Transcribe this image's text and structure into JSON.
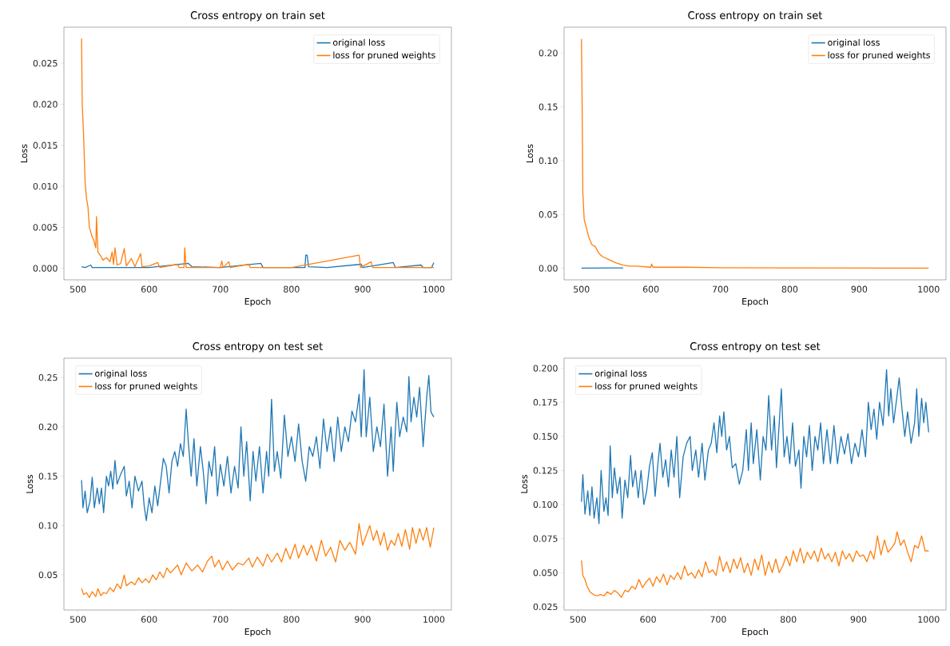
{
  "chart_data": [
    {
      "type": "line",
      "title": "Cross entropy on train set",
      "xlabel": "Epoch",
      "ylabel": "Loss",
      "legend": "top right",
      "xlim": [
        480.25,
        1024.75
      ],
      "ylim": [
        -0.0014,
        0.0294
      ],
      "xticks": [
        500,
        600,
        700,
        800,
        900,
        1000
      ],
      "yticks": [
        {
          "value": 0,
          "label": "0.000"
        },
        {
          "value": 0.005,
          "label": "0.005"
        },
        {
          "value": 0.01,
          "label": "0.010"
        },
        {
          "value": 0.015,
          "label": "0.015"
        },
        {
          "value": 0.02,
          "label": "0.020"
        },
        {
          "value": 0.025,
          "label": "0.025"
        }
      ],
      "series": [
        {
          "name": "original loss",
          "color": "#1f77b4",
          "x": [
            505,
            510,
            518,
            520,
            600,
            655,
            660,
            700,
            757,
            760,
            819,
            820,
            822,
            824,
            850,
            898,
            900,
            943,
            946,
            982,
            985,
            997,
            1000
          ],
          "values": [
            0.0002,
            0.0001,
            0.0004,
            0.0001,
            0.0001,
            0.0006,
            0.0002,
            0.0001,
            0.0006,
            0.0001,
            0.0001,
            0.0016,
            0.0016,
            0.0002,
            0.0001,
            0.0005,
            0.0001,
            0.0007,
            0.0001,
            0.0004,
            0.0001,
            0.0001,
            0.0007
          ]
        },
        {
          "name": "loss for pruned weights",
          "color": "#ff7f0e",
          "x": [
            505,
            506,
            508,
            510,
            512,
            514,
            516,
            520,
            522,
            525,
            526,
            528,
            532,
            535,
            540,
            545,
            548,
            550,
            552,
            555,
            560,
            565,
            568,
            575,
            580,
            588,
            590,
            600,
            612,
            615,
            640,
            642,
            649,
            650,
            652,
            700,
            702,
            704,
            712,
            714,
            740,
            742,
            800,
            895,
            897,
            912,
            914,
            1000
          ],
          "values": [
            0.028,
            0.02,
            0.016,
            0.0105,
            0.0085,
            0.0075,
            0.005,
            0.0038,
            0.0035,
            0.0025,
            0.0063,
            0.002,
            0.0015,
            0.001,
            0.0013,
            0.0008,
            0.002,
            0.0005,
            0.0025,
            0.0004,
            0.0006,
            0.0024,
            0.0003,
            0.0012,
            0.0002,
            0.0018,
            0.0002,
            0.0003,
            0.0007,
            0.0001,
            0.0005,
            0.0001,
            0.0001,
            0.0025,
            0.0001,
            0.0001,
            0.0009,
            0.0001,
            0.0008,
            0.0001,
            0.0005,
            0.0001,
            0.0001,
            0.0016,
            0.0001,
            0.0008,
            0.0001,
            0.0001
          ]
        }
      ]
    },
    {
      "type": "line",
      "title": "Cross entropy on train set",
      "xlabel": "Epoch",
      "ylabel": "Loss",
      "legend": "top right",
      "xlim": [
        475,
        1025
      ],
      "ylim": [
        -0.0107,
        0.224
      ],
      "xticks": [
        500,
        600,
        700,
        800,
        900,
        1000
      ],
      "yticks": [
        {
          "value": 0,
          "label": "0.00"
        },
        {
          "value": 0.05,
          "label": "0.05"
        },
        {
          "value": 0.1,
          "label": "0.10"
        },
        {
          "value": 0.15,
          "label": "0.15"
        },
        {
          "value": 0.2,
          "label": "0.20"
        }
      ],
      "series": [
        {
          "name": "original loss",
          "color": "#1f77b4",
          "x": [
            500,
            560
          ],
          "values": [
            0.0002,
            0.0003
          ]
        },
        {
          "name": "loss for pruned weights",
          "color": "#ff7f0e",
          "x": [
            500,
            501,
            502,
            504,
            507,
            510,
            515,
            520,
            525,
            530,
            540,
            550,
            560,
            570,
            580,
            600,
            601,
            603,
            650,
            700,
            800,
            1000
          ],
          "values": [
            0.213,
            0.15,
            0.07,
            0.045,
            0.038,
            0.03,
            0.022,
            0.02,
            0.014,
            0.011,
            0.008,
            0.005,
            0.003,
            0.002,
            0.002,
            0.001,
            0.004,
            0.001,
            0.001,
            0.0005,
            0.0003,
            0.0001
          ]
        }
      ]
    },
    {
      "type": "line",
      "title": "Cross entropy on test set",
      "xlabel": "Epoch",
      "ylabel": "Loss",
      "legend": "top left",
      "xlim": [
        480.25,
        1024.75
      ],
      "ylim": [
        0.0144,
        0.2696
      ],
      "xticks": [
        500,
        600,
        700,
        800,
        900,
        1000
      ],
      "yticks": [
        {
          "value": 0.05,
          "label": "0.05"
        },
        {
          "value": 0.1,
          "label": "0.10"
        },
        {
          "value": 0.15,
          "label": "0.15"
        },
        {
          "value": 0.2,
          "label": "0.20"
        },
        {
          "value": 0.25,
          "label": "0.25"
        }
      ],
      "series": [
        {
          "name": "original loss",
          "color": "#1f77b4",
          "x": [
            505,
            507,
            510,
            513,
            517,
            520,
            523,
            527,
            530,
            533,
            536,
            540,
            543,
            546,
            549,
            552,
            555,
            560,
            565,
            568,
            572,
            576,
            580,
            585,
            590,
            593,
            596,
            600,
            604,
            608,
            612,
            617,
            620,
            624,
            628,
            632,
            636,
            640,
            644,
            648,
            652,
            655,
            659,
            663,
            667,
            672,
            676,
            680,
            684,
            688,
            692,
            696,
            700,
            705,
            710,
            715,
            720,
            725,
            729,
            733,
            737,
            742,
            746,
            750,
            755,
            760,
            765,
            768,
            772,
            776,
            780,
            785,
            790,
            795,
            800,
            805,
            810,
            815,
            820,
            825,
            830,
            835,
            840,
            845,
            850,
            855,
            860,
            865,
            870,
            875,
            880,
            885,
            890,
            895,
            898,
            902,
            905,
            910,
            915,
            920,
            925,
            930,
            935,
            940,
            943,
            948,
            952,
            957,
            962,
            965,
            968,
            972,
            976,
            980,
            985,
            990,
            993,
            996,
            1000
          ],
          "values": [
            0.146,
            0.118,
            0.135,
            0.113,
            0.125,
            0.149,
            0.118,
            0.138,
            0.122,
            0.138,
            0.113,
            0.15,
            0.14,
            0.155,
            0.137,
            0.166,
            0.142,
            0.152,
            0.16,
            0.13,
            0.145,
            0.118,
            0.15,
            0.135,
            0.145,
            0.12,
            0.105,
            0.128,
            0.113,
            0.14,
            0.12,
            0.15,
            0.168,
            0.16,
            0.133,
            0.165,
            0.175,
            0.16,
            0.183,
            0.17,
            0.218,
            0.185,
            0.15,
            0.188,
            0.14,
            0.18,
            0.155,
            0.122,
            0.165,
            0.15,
            0.18,
            0.13,
            0.162,
            0.14,
            0.17,
            0.133,
            0.16,
            0.138,
            0.2,
            0.15,
            0.185,
            0.125,
            0.175,
            0.145,
            0.18,
            0.133,
            0.175,
            0.15,
            0.228,
            0.155,
            0.175,
            0.148,
            0.212,
            0.17,
            0.19,
            0.165,
            0.203,
            0.165,
            0.145,
            0.18,
            0.17,
            0.19,
            0.158,
            0.208,
            0.175,
            0.2,
            0.165,
            0.21,
            0.175,
            0.2,
            0.185,
            0.216,
            0.205,
            0.233,
            0.19,
            0.258,
            0.19,
            0.23,
            0.175,
            0.2,
            0.18,
            0.223,
            0.15,
            0.2,
            0.155,
            0.225,
            0.19,
            0.21,
            0.195,
            0.251,
            0.205,
            0.23,
            0.21,
            0.24,
            0.18,
            0.23,
            0.252,
            0.215,
            0.21
          ]
        },
        {
          "name": "loss for pruned weights",
          "color": "#ff7f0e",
          "x": [
            505,
            508,
            512,
            516,
            520,
            525,
            528,
            532,
            536,
            540,
            545,
            550,
            555,
            560,
            565,
            568,
            575,
            580,
            585,
            590,
            595,
            600,
            605,
            610,
            615,
            620,
            625,
            630,
            640,
            645,
            652,
            660,
            668,
            675,
            682,
            688,
            692,
            698,
            703,
            710,
            717,
            725,
            732,
            740,
            745,
            752,
            760,
            766,
            772,
            780,
            786,
            792,
            798,
            805,
            810,
            817,
            822,
            828,
            835,
            842,
            848,
            855,
            862,
            868,
            875,
            882,
            890,
            895,
            900,
            905,
            910,
            915,
            920,
            925,
            930,
            935,
            940,
            945,
            950,
            955,
            960,
            966,
            970,
            975,
            980,
            985,
            990,
            995,
            1000
          ],
          "values": [
            0.036,
            0.03,
            0.032,
            0.027,
            0.033,
            0.028,
            0.036,
            0.029,
            0.032,
            0.031,
            0.037,
            0.033,
            0.041,
            0.036,
            0.05,
            0.039,
            0.043,
            0.04,
            0.047,
            0.042,
            0.046,
            0.042,
            0.05,
            0.045,
            0.053,
            0.047,
            0.057,
            0.052,
            0.06,
            0.05,
            0.062,
            0.054,
            0.06,
            0.053,
            0.064,
            0.069,
            0.058,
            0.065,
            0.055,
            0.064,
            0.055,
            0.062,
            0.06,
            0.067,
            0.058,
            0.068,
            0.059,
            0.071,
            0.063,
            0.072,
            0.063,
            0.077,
            0.066,
            0.081,
            0.067,
            0.08,
            0.07,
            0.08,
            0.064,
            0.085,
            0.069,
            0.078,
            0.063,
            0.085,
            0.075,
            0.083,
            0.071,
            0.102,
            0.08,
            0.09,
            0.1,
            0.085,
            0.095,
            0.08,
            0.093,
            0.075,
            0.085,
            0.08,
            0.092,
            0.079,
            0.096,
            0.076,
            0.098,
            0.082,
            0.097,
            0.085,
            0.098,
            0.078,
            0.098
          ]
        }
      ]
    },
    {
      "type": "line",
      "title": "Cross entropy on test set",
      "xlabel": "Epoch",
      "ylabel": "Loss",
      "legend": "top left",
      "xlim": [
        480.25,
        1024.75
      ],
      "ylim": [
        0.0226,
        0.2074
      ],
      "xticks": [
        500,
        600,
        700,
        800,
        900,
        1000
      ],
      "yticks": [
        {
          "value": 0.025,
          "label": "0.025"
        },
        {
          "value": 0.05,
          "label": "0.050"
        },
        {
          "value": 0.075,
          "label": "0.075"
        },
        {
          "value": 0.1,
          "label": "0.100"
        },
        {
          "value": 0.125,
          "label": "0.125"
        },
        {
          "value": 0.15,
          "label": "0.150"
        },
        {
          "value": 0.175,
          "label": "0.175"
        },
        {
          "value": 0.2,
          "label": "0.200"
        }
      ],
      "series": [
        {
          "name": "original loss",
          "color": "#1f77b4",
          "x": [
            505,
            507,
            510,
            514,
            517,
            520,
            523,
            527,
            530,
            533,
            537,
            540,
            543,
            546,
            549,
            552,
            556,
            560,
            563,
            567,
            571,
            575,
            578,
            582,
            586,
            590,
            594,
            598,
            602,
            606,
            610,
            614,
            617,
            621,
            625,
            629,
            633,
            637,
            641,
            645,
            650,
            655,
            660,
            663,
            668,
            672,
            677,
            681,
            686,
            690,
            694,
            698,
            702,
            705,
            708,
            712,
            716,
            720,
            725,
            730,
            735,
            740,
            743,
            747,
            750,
            755,
            760,
            764,
            768,
            772,
            776,
            780,
            783,
            787,
            790,
            794,
            798,
            802,
            806,
            810,
            815,
            818,
            822,
            826,
            830,
            834,
            838,
            842,
            846,
            850,
            855,
            860,
            865,
            870,
            875,
            880,
            885,
            890,
            895,
            900,
            905,
            910,
            914,
            918,
            922,
            926,
            930,
            935,
            940,
            943,
            946,
            950,
            955,
            958,
            962,
            966,
            970,
            975,
            980,
            983,
            986,
            990,
            993,
            996,
            1000
          ],
          "values": [
            0.102,
            0.122,
            0.093,
            0.11,
            0.092,
            0.113,
            0.09,
            0.105,
            0.086,
            0.125,
            0.095,
            0.105,
            0.092,
            0.143,
            0.105,
            0.127,
            0.108,
            0.12,
            0.09,
            0.118,
            0.105,
            0.136,
            0.113,
            0.125,
            0.105,
            0.125,
            0.1,
            0.11,
            0.128,
            0.138,
            0.106,
            0.13,
            0.145,
            0.12,
            0.133,
            0.113,
            0.14,
            0.12,
            0.15,
            0.105,
            0.135,
            0.145,
            0.15,
            0.125,
            0.14,
            0.12,
            0.145,
            0.118,
            0.14,
            0.145,
            0.16,
            0.138,
            0.165,
            0.15,
            0.168,
            0.14,
            0.15,
            0.127,
            0.13,
            0.115,
            0.125,
            0.155,
            0.125,
            0.16,
            0.13,
            0.155,
            0.118,
            0.15,
            0.14,
            0.18,
            0.14,
            0.165,
            0.127,
            0.16,
            0.185,
            0.135,
            0.15,
            0.13,
            0.16,
            0.128,
            0.14,
            0.112,
            0.15,
            0.135,
            0.158,
            0.125,
            0.15,
            0.14,
            0.16,
            0.13,
            0.155,
            0.13,
            0.158,
            0.13,
            0.15,
            0.137,
            0.152,
            0.13,
            0.145,
            0.135,
            0.155,
            0.135,
            0.175,
            0.155,
            0.17,
            0.148,
            0.175,
            0.158,
            0.199,
            0.165,
            0.185,
            0.16,
            0.18,
            0.193,
            0.17,
            0.15,
            0.168,
            0.145,
            0.16,
            0.185,
            0.15,
            0.178,
            0.16,
            0.175,
            0.153
          ]
        },
        {
          "name": "loss for pruned weights",
          "color": "#ff7f0e",
          "x": [
            505,
            507,
            510,
            513,
            517,
            522,
            527,
            532,
            537,
            542,
            547,
            552,
            557,
            562,
            567,
            572,
            577,
            582,
            587,
            592,
            597,
            602,
            607,
            612,
            617,
            622,
            627,
            632,
            637,
            642,
            647,
            652,
            657,
            662,
            667,
            672,
            677,
            682,
            687,
            692,
            697,
            702,
            707,
            712,
            717,
            722,
            727,
            732,
            737,
            742,
            747,
            752,
            757,
            762,
            767,
            772,
            777,
            782,
            787,
            792,
            797,
            802,
            807,
            812,
            817,
            822,
            827,
            832,
            837,
            842,
            847,
            852,
            857,
            862,
            867,
            872,
            877,
            882,
            887,
            892,
            897,
            902,
            907,
            912,
            917,
            922,
            927,
            932,
            937,
            942,
            947,
            952,
            955,
            960,
            965,
            970,
            975,
            980,
            985,
            990,
            995,
            1000
          ],
          "values": [
            0.059,
            0.048,
            0.045,
            0.04,
            0.036,
            0.034,
            0.033,
            0.034,
            0.033,
            0.036,
            0.034,
            0.037,
            0.035,
            0.032,
            0.037,
            0.036,
            0.04,
            0.038,
            0.045,
            0.039,
            0.043,
            0.046,
            0.04,
            0.047,
            0.043,
            0.049,
            0.041,
            0.048,
            0.045,
            0.05,
            0.045,
            0.055,
            0.048,
            0.05,
            0.046,
            0.052,
            0.047,
            0.058,
            0.05,
            0.052,
            0.048,
            0.062,
            0.051,
            0.058,
            0.05,
            0.06,
            0.053,
            0.061,
            0.05,
            0.057,
            0.048,
            0.06,
            0.052,
            0.063,
            0.048,
            0.058,
            0.05,
            0.06,
            0.05,
            0.055,
            0.062,
            0.055,
            0.066,
            0.058,
            0.068,
            0.057,
            0.065,
            0.06,
            0.066,
            0.058,
            0.068,
            0.06,
            0.064,
            0.058,
            0.065,
            0.055,
            0.066,
            0.06,
            0.064,
            0.058,
            0.066,
            0.062,
            0.063,
            0.058,
            0.066,
            0.06,
            0.077,
            0.063,
            0.074,
            0.065,
            0.068,
            0.072,
            0.08,
            0.07,
            0.074,
            0.065,
            0.058,
            0.07,
            0.068,
            0.077,
            0.066,
            0.066
          ]
        }
      ]
    }
  ]
}
